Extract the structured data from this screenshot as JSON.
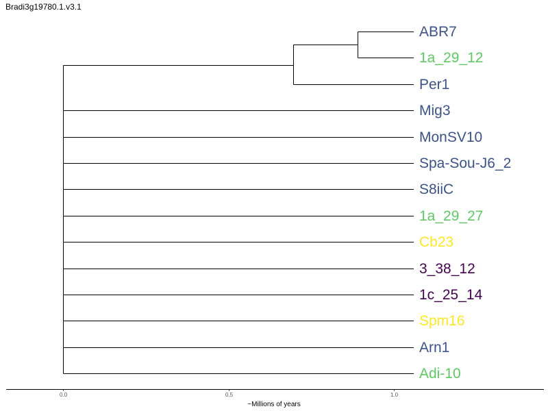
{
  "title": "Bradi3g19780.1.v3.1",
  "axis": {
    "label": "~Millions of years",
    "ticks": [
      "0.0",
      "0.5",
      "1.0"
    ],
    "tick_values": [
      0.0,
      0.5,
      1.0
    ],
    "range": [
      -0.17,
      1.46
    ]
  },
  "colors": {
    "blue": "#3b528b",
    "green": "#5ec962",
    "yellow": "#fde725",
    "purple": "#440154"
  },
  "tree": {
    "root_x": 0.0,
    "tip_x": 1.0,
    "clade": {
      "taxa": [
        "ABR7",
        "1a_29_12",
        "Per1"
      ],
      "inner_node_x": 0.695,
      "subclade_taxa": [
        "ABR7",
        "1a_29_12"
      ],
      "subclade_node_x": 0.89
    },
    "tips": [
      {
        "label": "ABR7",
        "color": "#3b528b"
      },
      {
        "label": "1a_29_12",
        "color": "#5ec962"
      },
      {
        "label": "Per1",
        "color": "#3b528b"
      },
      {
        "label": "Mig3",
        "color": "#3b528b"
      },
      {
        "label": "MonSV10",
        "color": "#3b528b"
      },
      {
        "label": "Spa-Sou-J6_2",
        "color": "#3b528b"
      },
      {
        "label": "S8iiC",
        "color": "#3b528b"
      },
      {
        "label": "1a_29_27",
        "color": "#5ec962"
      },
      {
        "label": "Cb23",
        "color": "#fde725"
      },
      {
        "label": "3_38_12",
        "color": "#440154"
      },
      {
        "label": "1c_25_14",
        "color": "#440154"
      },
      {
        "label": "Spm16",
        "color": "#fde725"
      },
      {
        "label": "Arn1",
        "color": "#3b528b"
      },
      {
        "label": "Adi-10",
        "color": "#5ec962"
      }
    ]
  }
}
